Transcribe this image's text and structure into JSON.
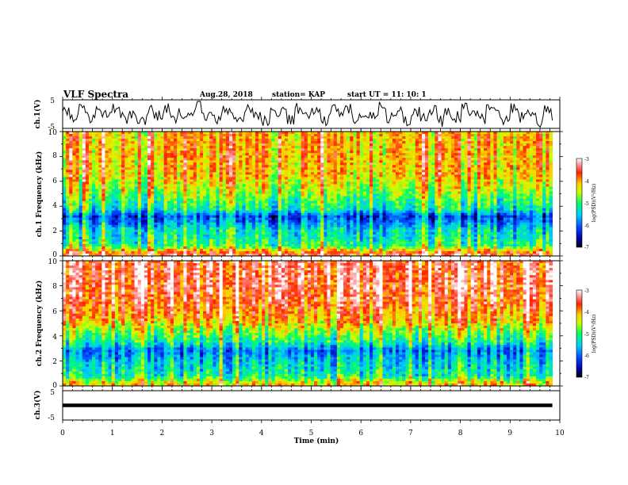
{
  "header": {
    "title": "VLF Spectra",
    "date": "Aug.28, 2018",
    "station": "station= KAP",
    "start": "start UT =  11: 10: 1"
  },
  "colors": {
    "stops": [
      "#000000",
      "#0000aa",
      "#0044ff",
      "#00ccff",
      "#00ff66",
      "#ccff00",
      "#ffcc00",
      "#ff2200",
      "#ff9999",
      "#ffffff"
    ],
    "trace": "#000000",
    "frame": "#000000",
    "background": "#ffffff"
  },
  "chart_data": [
    {
      "type": "line",
      "name": "ch1-waveform",
      "ylabel": "ch.1(V)",
      "xlim": [
        0,
        10
      ],
      "ylim": [
        -5,
        5
      ],
      "yticks": [
        "5",
        "-5"
      ],
      "data_end_min": 9.85,
      "samples": [
        0.4,
        -1.6,
        1.8,
        -2.2,
        0.9,
        -0.4,
        2.6,
        -1.9,
        0.3,
        -3.1,
        1.2,
        -0.8,
        2.2,
        -2.6,
        0.6,
        -1.2,
        3.0,
        -0.9,
        -2.4,
        1.4,
        0.2,
        -1.7,
        2.8,
        -0.5,
        -3.4,
        1.1,
        0.8,
        -2.0,
        2.3,
        -1.4,
        0.5,
        -2.9,
        1.7,
        -0.2,
        2.5,
        -2.3,
        0.1,
        -1.0,
        3.1,
        -1.8,
        0.7,
        -2.7,
        1.5,
        -0.6,
        2.0,
        -3.0,
        0.9,
        -1.3,
        2.7,
        -0.7,
        -2.1,
        1.9,
        0.3,
        -2.5,
        2.4,
        -1.1,
        0.6,
        -3.2,
        1.3,
        -0.4
      ],
      "grid": false
    },
    {
      "type": "heatmap",
      "name": "ch1-spectrogram",
      "ylabel": "ch.1 Frequency (kHz)",
      "xlim": [
        0,
        10
      ],
      "ylim": [
        0,
        10
      ],
      "yticks": [
        "0",
        "2",
        "4",
        "6",
        "8",
        "10"
      ],
      "data_end_min": 9.85,
      "band_profile_log_psd": [
        {
          "f_khz": 0.2,
          "log_psd": -3.6
        },
        {
          "f_khz": 0.8,
          "log_psd": -5.0
        },
        {
          "f_khz": 1.5,
          "log_psd": -5.3
        },
        {
          "f_khz": 2.1,
          "log_psd": -5.4
        },
        {
          "f_khz": 2.7,
          "log_psd": -5.9
        },
        {
          "f_khz": 3.2,
          "log_psd": -6.2
        },
        {
          "f_khz": 3.7,
          "log_psd": -5.3
        },
        {
          "f_khz": 4.5,
          "log_psd": -5.0
        },
        {
          "f_khz": 5.3,
          "log_psd": -4.6
        },
        {
          "f_khz": 6.5,
          "log_psd": -4.2
        },
        {
          "f_khz": 8.0,
          "log_psd": -4.1
        },
        {
          "f_khz": 9.9,
          "log_psd": -4.1
        }
      ],
      "colorbar": {
        "label": "log(PSD)(V²/Hz)",
        "range": [
          -7,
          -3
        ],
        "ticks": [
          "-3",
          "-4",
          "-5",
          "-6",
          "-7"
        ]
      }
    },
    {
      "type": "heatmap",
      "name": "ch2-spectrogram",
      "ylabel": "ch.2 Frequency (kHz)",
      "xlim": [
        0,
        10
      ],
      "ylim": [
        0,
        10
      ],
      "yticks": [
        "0",
        "2",
        "4",
        "6",
        "8",
        "10"
      ],
      "data_end_min": 9.85,
      "band_profile_log_psd": [
        {
          "f_khz": 0.2,
          "log_psd": -4.2
        },
        {
          "f_khz": 0.8,
          "log_psd": -5.2
        },
        {
          "f_khz": 1.5,
          "log_psd": -5.4
        },
        {
          "f_khz": 2.2,
          "log_psd": -5.6
        },
        {
          "f_khz": 2.8,
          "log_psd": -5.9
        },
        {
          "f_khz": 3.5,
          "log_psd": -5.2
        },
        {
          "f_khz": 4.3,
          "log_psd": -4.7
        },
        {
          "f_khz": 5.2,
          "log_psd": -4.1
        },
        {
          "f_khz": 6.5,
          "log_psd": -3.7
        },
        {
          "f_khz": 8.0,
          "log_psd": -3.5
        },
        {
          "f_khz": 9.9,
          "log_psd": -3.5
        }
      ],
      "colorbar": {
        "label": "log(PSD)(V²/Hz)",
        "range": [
          -7,
          -3
        ],
        "ticks": [
          "-3",
          "-4",
          "-5",
          "-6",
          "-7"
        ]
      }
    },
    {
      "type": "line",
      "name": "ch3-waveform",
      "ylabel": "ch.3(V)",
      "xlim": [
        0,
        10
      ],
      "ylim": [
        -5,
        5
      ],
      "yticks": [
        "5",
        "-5"
      ],
      "data_end_min": 9.85,
      "level": 0.0
    }
  ],
  "xaxis": {
    "label": "Time (min)",
    "ticks": [
      "0",
      "1",
      "2",
      "3",
      "4",
      "5",
      "6",
      "7",
      "8",
      "9",
      "10"
    ]
  }
}
